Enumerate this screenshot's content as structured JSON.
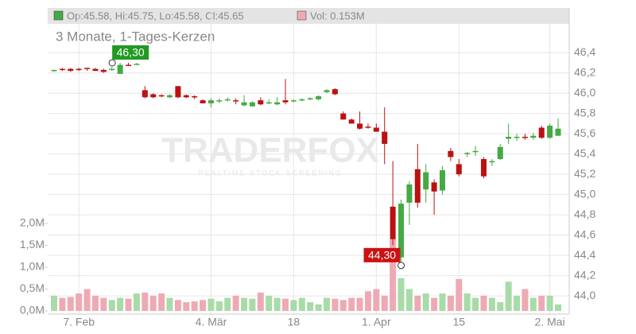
{
  "chart_data": {
    "type": "candlestick",
    "header": "Op:45.58, Hi:45.75, Lo:45.58, Cl:45.65",
    "volume_header": "Vol: 0.153M",
    "subtitle": "3 Monate, 1-Tages-Kerzen",
    "watermark": "TRADERFOX",
    "watermark_sub": "REALTIME STOCK SCREENING",
    "categories": [
      null,
      null,
      null,
      "7. Feb",
      null,
      null,
      null,
      null,
      null,
      null,
      null,
      null,
      null,
      null,
      null,
      null,
      null,
      null,
      null,
      "4. Mär",
      null,
      null,
      null,
      null,
      null,
      null,
      null,
      null,
      null,
      "18",
      null,
      null,
      null,
      null,
      null,
      null,
      null,
      null,
      null,
      "1. Apr",
      null,
      null,
      null,
      null,
      null,
      null,
      null,
      null,
      null,
      "15",
      null,
      null,
      null,
      null,
      null,
      null,
      null,
      null,
      null,
      null,
      "2. Mai",
      null
    ],
    "open": [
      46.22,
      46.24,
      46.24,
      46.24,
      46.25,
      46.24,
      46.23,
      46.23,
      46.19,
      46.28,
      46.29,
      46.03,
      45.99,
      45.98,
      45.96,
      46.07,
      45.98,
      45.97,
      45.93,
      45.9,
      45.93,
      45.94,
      45.93,
      45.88,
      45.87,
      45.93,
      45.9,
      45.89,
      45.93,
      45.92,
      45.93,
      45.94,
      45.94,
      46.01,
      46.04,
      45.8,
      45.74,
      45.7,
      45.67,
      45.66,
      45.62,
      44.88,
      44.38,
      44.92,
      45.25,
      45.05,
      45.12,
      45.04,
      45.43,
      45.3,
      45.4,
      45.42,
      45.35,
      45.32,
      45.35,
      45.55,
      45.56,
      45.57,
      45.56,
      45.66,
      45.56,
      45.58
    ],
    "high": [
      46.23,
      46.25,
      46.25,
      46.25,
      46.25,
      46.25,
      46.24,
      46.26,
      46.3,
      46.3,
      46.3,
      46.07,
      46.0,
      45.99,
      45.99,
      46.07,
      45.99,
      45.98,
      45.94,
      45.95,
      45.95,
      45.96,
      45.95,
      45.98,
      45.92,
      45.96,
      45.94,
      45.96,
      46.14,
      45.94,
      45.95,
      45.96,
      45.98,
      46.04,
      46.05,
      45.82,
      45.75,
      45.82,
      45.7,
      45.7,
      45.86,
      45.33,
      44.95,
      45.13,
      45.5,
      45.3,
      45.15,
      45.28,
      45.46,
      45.35,
      45.42,
      45.48,
      45.37,
      45.35,
      45.5,
      45.7,
      45.6,
      45.6,
      45.61,
      45.68,
      45.7,
      45.75
    ],
    "low": [
      46.21,
      46.22,
      46.21,
      46.22,
      46.22,
      46.22,
      46.2,
      46.22,
      46.19,
      46.27,
      46.28,
      45.95,
      45.95,
      45.96,
      45.95,
      45.95,
      45.95,
      45.94,
      45.9,
      45.86,
      45.9,
      45.92,
      45.89,
      45.87,
      45.87,
      45.88,
      45.89,
      45.88,
      45.89,
      45.91,
      45.92,
      45.93,
      45.93,
      46.0,
      45.98,
      45.74,
      45.7,
      45.64,
      45.65,
      45.62,
      45.3,
      44.5,
      44.3,
      44.7,
      44.87,
      44.92,
      44.8,
      45.0,
      45.33,
      45.18,
      45.37,
      45.38,
      45.16,
      45.28,
      45.34,
      45.5,
      45.53,
      45.54,
      45.54,
      45.55,
      45.55,
      45.58
    ],
    "close": [
      46.23,
      46.23,
      46.22,
      46.23,
      46.24,
      46.22,
      46.21,
      46.24,
      46.28,
      46.27,
      46.29,
      45.96,
      45.96,
      45.97,
      45.98,
      45.96,
      45.96,
      45.96,
      45.9,
      45.93,
      45.93,
      45.94,
      45.92,
      45.91,
      45.91,
      45.89,
      45.91,
      45.91,
      45.91,
      45.93,
      45.94,
      45.95,
      45.97,
      46.03,
      45.99,
      45.74,
      45.7,
      45.65,
      45.66,
      45.62,
      45.5,
      44.56,
      44.91,
      45.1,
      44.92,
      45.22,
      45.03,
      45.24,
      45.37,
      45.2,
      45.41,
      45.43,
      45.18,
      45.33,
      45.47,
      45.57,
      45.57,
      45.56,
      45.58,
      45.56,
      45.68,
      45.65
    ],
    "volume": [
      0.35,
      0.3,
      0.32,
      0.4,
      0.5,
      0.35,
      0.3,
      0.25,
      0.3,
      0.28,
      0.4,
      0.42,
      0.35,
      0.4,
      0.3,
      0.25,
      0.2,
      0.22,
      0.25,
      0.28,
      0.22,
      0.3,
      0.35,
      0.3,
      0.28,
      0.42,
      0.35,
      0.3,
      0.28,
      0.25,
      0.3,
      0.2,
      0.15,
      0.3,
      0.28,
      0.25,
      0.3,
      0.3,
      0.45,
      0.5,
      0.35,
      1.65,
      0.75,
      0.5,
      0.35,
      0.4,
      0.3,
      0.4,
      0.35,
      0.73,
      0.4,
      0.3,
      0.35,
      0.3,
      0.2,
      0.67,
      0.35,
      0.5,
      0.3,
      0.35,
      0.35,
      0.15
    ],
    "up_color": "#44aa44",
    "down_color": "#bb1111",
    "up_volume_color": "#a8dba8",
    "down_volume_color": "#eeaab4",
    "ylim": [
      43.82,
      46.7
    ],
    "yticks": [
      {
        "value": 44.0,
        "label": "44,0"
      },
      {
        "value": 44.2,
        "label": "44,2"
      },
      {
        "value": 44.4,
        "label": "44,4"
      },
      {
        "value": 44.6,
        "label": "44,6"
      },
      {
        "value": 44.8,
        "label": "44,8"
      },
      {
        "value": 45.0,
        "label": "45,0"
      },
      {
        "value": 45.2,
        "label": "45,2"
      },
      {
        "value": 45.4,
        "label": "45,4"
      },
      {
        "value": 45.6,
        "label": "45,6"
      },
      {
        "value": 45.8,
        "label": "45,8"
      },
      {
        "value": 46.0,
        "label": "46,0"
      },
      {
        "value": 46.2,
        "label": "46,2"
      },
      {
        "value": 46.4,
        "label": "46,4"
      }
    ],
    "y2lim": [
      0,
      6.6
    ],
    "y2ticks": [
      {
        "value": 0,
        "label": "0,0M"
      },
      {
        "value": 0.5,
        "label": "0,5M"
      },
      {
        "value": 1.0,
        "label": "1,0M"
      },
      {
        "value": 1.5,
        "label": "1,5M"
      },
      {
        "value": 2.0,
        "label": "2,0M"
      }
    ],
    "annotations": [
      {
        "label": "46,30",
        "value": 46.3,
        "color": "#229922"
      },
      {
        "label": "44,30",
        "value": 44.3,
        "color": "#cc1111"
      }
    ],
    "grid": true
  }
}
